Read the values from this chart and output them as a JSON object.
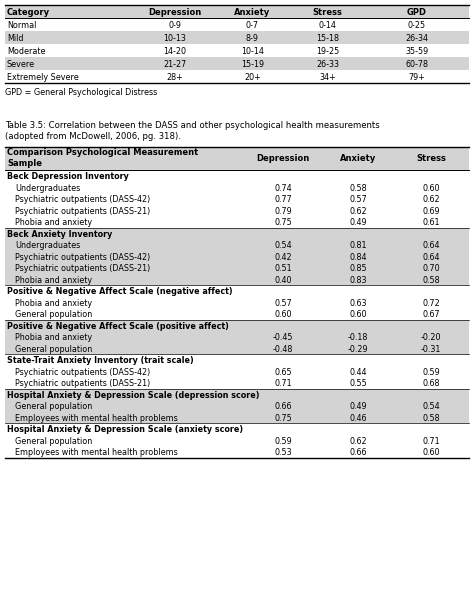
{
  "table1": {
    "headers": [
      "Category",
      "Depression",
      "Anxiety",
      "Stress",
      "GPD"
    ],
    "rows": [
      [
        "Normal",
        "0-9",
        "0-7",
        "0-14",
        "0-25"
      ],
      [
        "Mild",
        "10-13",
        "8-9",
        "15-18",
        "26-34"
      ],
      [
        "Moderate",
        "14-20",
        "10-14",
        "19-25",
        "35-59"
      ],
      [
        "Severe",
        "21-27",
        "15-19",
        "26-33",
        "60-78"
      ],
      [
        "Extremely Severe",
        "28+",
        "20+",
        "34+",
        "79+"
      ]
    ],
    "footnote": "GPD = General Psychological Distress",
    "shaded_rows": [
      1,
      3
    ]
  },
  "caption_line1": "Table 3.5: Correlation between the DASS and other psychological health measurements",
  "caption_line2": "(adopted from McDowell, 2006, pg. 318).",
  "table2": {
    "header_col_line1": "Comparison Psychological Measurement",
    "header_col_line2": "Sample",
    "headers": [
      "Depression",
      "Anxiety",
      "Stress"
    ],
    "rows": [
      {
        "label": "Beck Depression Inventory",
        "bold": true,
        "indent": 0,
        "d": "",
        "a": "",
        "s": ""
      },
      {
        "label": "Undergraduates",
        "bold": false,
        "indent": 1,
        "d": "0.74",
        "a": "0.58",
        "s": "0.60"
      },
      {
        "label": "Psychiatric outpatients (DASS-42)",
        "bold": false,
        "indent": 1,
        "d": "0.77",
        "a": "0.57",
        "s": "0.62"
      },
      {
        "label": "Psychiatric outpatients (DASS-21)",
        "bold": false,
        "indent": 1,
        "d": "0.79",
        "a": "0.62",
        "s": "0.69"
      },
      {
        "label": "Phobia and anxiety",
        "bold": false,
        "indent": 1,
        "d": "0.75",
        "a": "0.49",
        "s": "0.61"
      },
      {
        "label": "Beck Anxiety Inventory",
        "bold": true,
        "indent": 0,
        "d": "",
        "a": "",
        "s": ""
      },
      {
        "label": "Undergraduates",
        "bold": false,
        "indent": 1,
        "d": "0.54",
        "a": "0.81",
        "s": "0.64"
      },
      {
        "label": "Psychiatric outpatients (DASS-42)",
        "bold": false,
        "indent": 1,
        "d": "0.42",
        "a": "0.84",
        "s": "0.64"
      },
      {
        "label": "Psychiatric outpatients (DASS-21)",
        "bold": false,
        "indent": 1,
        "d": "0.51",
        "a": "0.85",
        "s": "0.70"
      },
      {
        "label": "Phobia and anxiety",
        "bold": false,
        "indent": 1,
        "d": "0.40",
        "a": "0.83",
        "s": "0.58"
      },
      {
        "label": "Positive & Negative Affect Scale (negative affect)",
        "bold": true,
        "indent": 0,
        "d": "",
        "a": "",
        "s": ""
      },
      {
        "label": "Phobia and anxiety",
        "bold": false,
        "indent": 1,
        "d": "0.57",
        "a": "0.63",
        "s": "0.72"
      },
      {
        "label": "General population",
        "bold": false,
        "indent": 1,
        "d": "0.60",
        "a": "0.60",
        "s": "0.67"
      },
      {
        "label": "Positive & Negative Affect Scale (positive affect)",
        "bold": true,
        "indent": 0,
        "d": "",
        "a": "",
        "s": ""
      },
      {
        "label": "Phobia and anxiety",
        "bold": false,
        "indent": 1,
        "d": "-0.45",
        "a": "-0.18",
        "s": "-0.20"
      },
      {
        "label": "General population",
        "bold": false,
        "indent": 1,
        "d": "-0.48",
        "a": "-0.29",
        "s": "-0.31"
      },
      {
        "label": "State-Trait Anxiety Inventory (trait scale)",
        "bold": true,
        "indent": 0,
        "d": "",
        "a": "",
        "s": ""
      },
      {
        "label": "Psychiatric outpatients (DASS-42)",
        "bold": false,
        "indent": 1,
        "d": "0.65",
        "a": "0.44",
        "s": "0.59"
      },
      {
        "label": "Psychiatric outpatients (DASS-21)",
        "bold": false,
        "indent": 1,
        "d": "0.71",
        "a": "0.55",
        "s": "0.68"
      },
      {
        "label": "Hospital Anxiety & Depression Scale (depression score)",
        "bold": true,
        "indent": 0,
        "d": "",
        "a": "",
        "s": ""
      },
      {
        "label": "General population",
        "bold": false,
        "indent": 1,
        "d": "0.66",
        "a": "0.49",
        "s": "0.54"
      },
      {
        "label": "Employees with mental health problems",
        "bold": false,
        "indent": 1,
        "d": "0.75",
        "a": "0.46",
        "s": "0.58"
      },
      {
        "label": "Hospital Anxiety & Depression Scale (anxiety score)",
        "bold": true,
        "indent": 0,
        "d": "",
        "a": "",
        "s": ""
      },
      {
        "label": "General population",
        "bold": false,
        "indent": 1,
        "d": "0.59",
        "a": "0.62",
        "s": "0.71"
      },
      {
        "label": "Employees with mental health problems",
        "bold": false,
        "indent": 1,
        "d": "0.53",
        "a": "0.66",
        "s": "0.60"
      }
    ],
    "shaded_sections": [
      0,
      1,
      2,
      3,
      4,
      5,
      6,
      7,
      8,
      9,
      10,
      11,
      12,
      13,
      14,
      15,
      16,
      17,
      18,
      19,
      20,
      21,
      22,
      23,
      24
    ]
  },
  "bg_gray": "#d3d3d3",
  "bg_white": "#ffffff",
  "font_size": 5.8,
  "header_font_size": 6.0
}
